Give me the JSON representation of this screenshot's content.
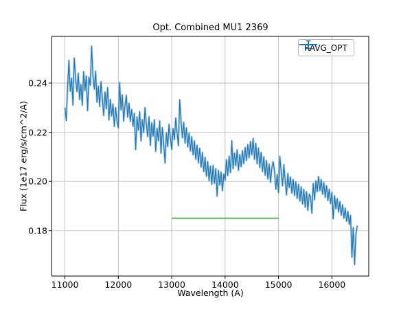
{
  "chart_data": {
    "type": "line",
    "title": "Opt. Combined MU1 2369",
    "xlabel": "Wavelength (A)",
    "ylabel": "Flux (1e17 erg/s/cm^2/A)",
    "xlim": [
      10755,
      16690
    ],
    "ylim": [
      0.1615,
      0.259
    ],
    "grid": true,
    "x_ticks": [
      11000,
      12000,
      13000,
      14000,
      15000,
      16000
    ],
    "x_tick_labels": [
      "11000",
      "12000",
      "13000",
      "14000",
      "15000",
      "16000"
    ],
    "y_ticks": [
      0.18,
      0.2,
      0.22,
      0.24
    ],
    "y_tick_labels": [
      "0.18",
      "0.20",
      "0.22",
      "0.24"
    ],
    "legend": {
      "label": "RAVG_OPT",
      "position": "upper right"
    },
    "colors": {
      "line": "#1f77b4",
      "annotation": "#2ca02c",
      "grid": "#b0b0b0",
      "frame": "#000000"
    },
    "annotations": [
      {
        "type": "hline_segment",
        "x1": 13000,
        "x2": 15000,
        "y": 0.185,
        "color": "#2ca02c",
        "opacity": 0.62
      }
    ],
    "series": [
      {
        "name": "RAVG_OPT",
        "x_start": 11000,
        "x_step": 25,
        "values": [
          0.23,
          0.2248,
          0.2385,
          0.2492,
          0.2367,
          0.242,
          0.2311,
          0.2502,
          0.2416,
          0.2365,
          0.244,
          0.2333,
          0.2394,
          0.231,
          0.2446,
          0.237,
          0.2429,
          0.2288,
          0.2424,
          0.2391,
          0.255,
          0.2431,
          0.2375,
          0.2448,
          0.2322,
          0.2388,
          0.2305,
          0.2406,
          0.2341,
          0.2268,
          0.2364,
          0.2295,
          0.2382,
          0.225,
          0.2334,
          0.2266,
          0.2315,
          0.2224,
          0.23,
          0.2247,
          0.2218,
          0.2402,
          0.2291,
          0.2352,
          0.2245,
          0.231,
          0.235,
          0.2261,
          0.2318,
          0.2244,
          0.2292,
          0.2224,
          0.2277,
          0.213,
          0.2262,
          0.2208,
          0.2284,
          0.2165,
          0.2251,
          0.2199,
          0.23,
          0.2234,
          0.2182,
          0.2263,
          0.2146,
          0.2238,
          0.2184,
          0.2251,
          0.2122,
          0.2216,
          0.2165,
          0.2246,
          0.2115,
          0.2219,
          0.2152,
          0.2075,
          0.2198,
          0.2142,
          0.2232,
          0.2178,
          0.213,
          0.2215,
          0.217,
          0.2258,
          0.2198,
          0.2145,
          0.2332,
          0.2246,
          0.2178,
          0.224,
          0.2156,
          0.2218,
          0.214,
          0.2196,
          0.2123,
          0.2182,
          0.2108,
          0.2165,
          0.209,
          0.2148,
          0.2075,
          0.2135,
          0.2058,
          0.2118,
          0.204,
          0.2098,
          0.2021,
          0.208,
          0.2003,
          0.2062,
          0.1988,
          0.2066,
          0.1992,
          0.2052,
          0.194,
          0.2045,
          0.1985,
          0.2038,
          0.1962,
          0.203,
          0.2005,
          0.2088,
          0.2024,
          0.2102,
          0.2036,
          0.2165,
          0.2052,
          0.2115,
          0.2064,
          0.2128,
          0.2045,
          0.211,
          0.206,
          0.2125,
          0.2072,
          0.2138,
          0.2085,
          0.215,
          0.2096,
          0.2162,
          0.2108,
          0.2175,
          0.209,
          0.2155,
          0.2072,
          0.2135,
          0.2056,
          0.2118,
          0.204,
          0.21,
          0.2025,
          0.2085,
          0.201,
          0.207,
          0.1996,
          0.2055,
          0.208,
          0.2042,
          0.1968,
          0.2028,
          0.1955,
          0.2102,
          0.204,
          0.1982,
          0.2068,
          0.2005,
          0.1945,
          0.2032,
          0.1975,
          0.2018,
          0.1952,
          0.2008,
          0.1942,
          0.1998,
          0.193,
          0.1988,
          0.192,
          0.1978,
          0.1908,
          0.1968,
          0.1895,
          0.1958,
          0.1882,
          0.1948,
          0.1938,
          0.187,
          0.1992,
          0.1925,
          0.2002,
          0.1958,
          0.202,
          0.1962,
          0.2008,
          0.1948,
          0.1995,
          0.1935,
          0.1982,
          0.1922,
          0.1968,
          0.191,
          0.1955,
          0.1848,
          0.1942,
          0.1888,
          0.193,
          0.1875,
          0.1918,
          0.1862,
          0.1905,
          0.185,
          0.1892,
          0.1838,
          0.1878,
          0.1825,
          0.1862,
          0.1692,
          0.1812,
          0.1662,
          0.1785,
          0.182
        ]
      }
    ]
  }
}
